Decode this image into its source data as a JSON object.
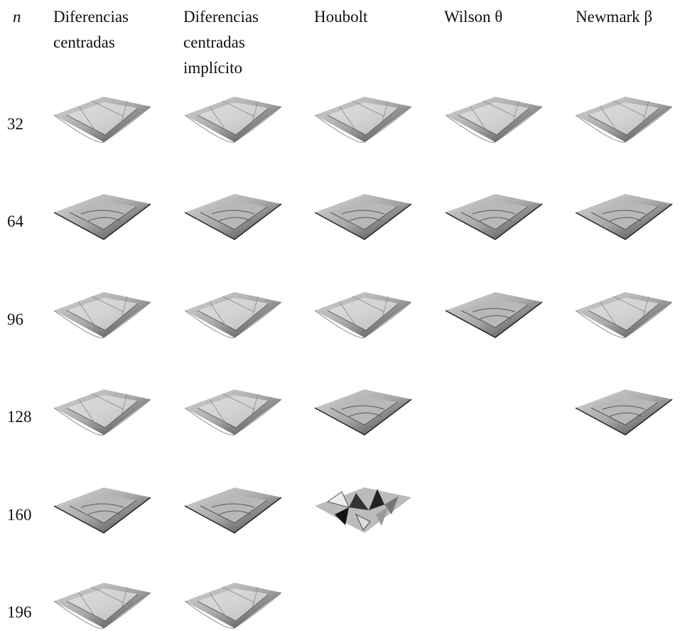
{
  "header": [
    "n",
    "Diferencias centradas",
    "Diferencias centradas implícito",
    "Houbolt",
    "Wilson θ",
    "Newmark β"
  ],
  "rows": [
    32,
    64,
    96,
    128,
    160,
    196
  ]
}
